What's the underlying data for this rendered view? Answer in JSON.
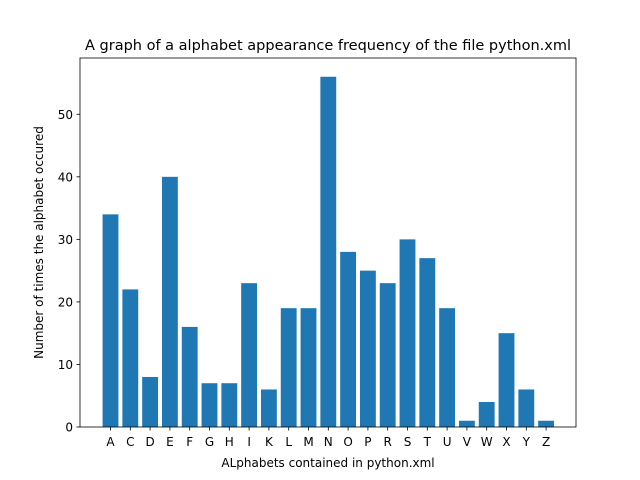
{
  "chart_data": {
    "type": "bar",
    "title": "A graph of a alphabet appearance frequency of the file python.xml",
    "xlabel": "ALphabets contained in python.xml",
    "ylabel": "Number of times the alphabet occured",
    "categories": [
      "A",
      "C",
      "D",
      "E",
      "F",
      "G",
      "H",
      "I",
      "K",
      "L",
      "M",
      "N",
      "O",
      "P",
      "R",
      "S",
      "T",
      "U",
      "V",
      "W",
      "X",
      "Y",
      "Z"
    ],
    "values": [
      34,
      22,
      8,
      40,
      16,
      7,
      7,
      23,
      6,
      19,
      19,
      56,
      28,
      25,
      23,
      30,
      27,
      19,
      1,
      4,
      15,
      6,
      1
    ],
    "ylim": [
      0,
      59
    ],
    "yticks": [
      0,
      10,
      20,
      30,
      40,
      50
    ],
    "grid": false,
    "bar_color": "#1f77b4"
  }
}
